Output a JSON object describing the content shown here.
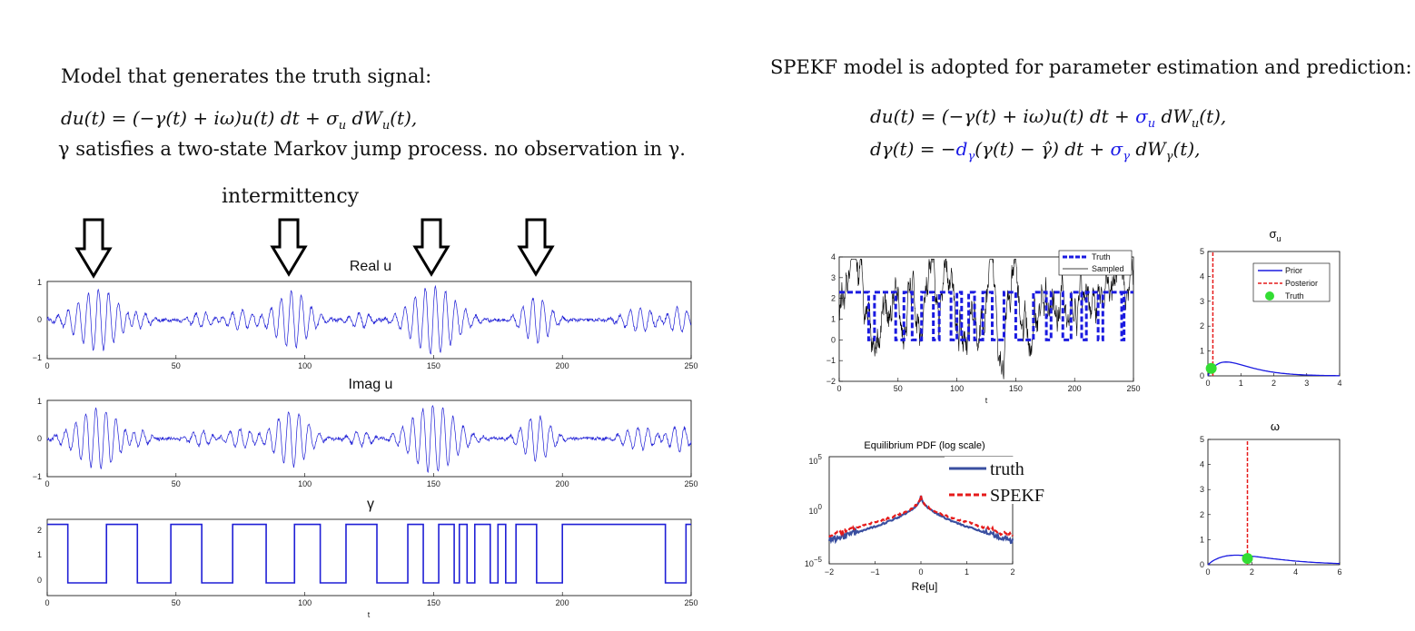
{
  "left": {
    "heading": "Model that generates the truth signal:",
    "equation_parts": {
      "a": "du(t) = (−γ(t) + iω)u(t) dt + σ",
      "sub": "u",
      "b": " dW",
      "sub2": "u",
      "c": "(t),"
    },
    "note": "γ satisfies a two-state Markov jump process.  no observation in γ.",
    "intermittency_label": "intermittency",
    "arrow_icon": "down-arrow-icon",
    "panels": [
      {
        "title": "Real u",
        "yticks": [
          "1",
          "0",
          "−1"
        ],
        "xticks": [
          "0",
          "50",
          "100",
          "150",
          "200",
          "250"
        ],
        "xlabel": ""
      },
      {
        "title": "Imag u",
        "yticks": [
          "1",
          "0",
          "−1"
        ],
        "xticks": [
          "0",
          "50",
          "100",
          "150",
          "200",
          "250"
        ],
        "xlabel": ""
      },
      {
        "title": "γ",
        "yticks": [
          "2",
          "1",
          "0"
        ],
        "xticks": [
          "0",
          "50",
          "100",
          "150",
          "200",
          "250"
        ],
        "xlabel": "t"
      }
    ]
  },
  "right": {
    "heading": "SPEKF model is adopted for parameter estimation and prediction:",
    "eq1_parts": {
      "a": "du(t) = (−γ(t) + iω)u(t) dt + ",
      "s": "σ",
      "sub": "u",
      "b": " dW",
      "sub2": "u",
      "c": "(t),"
    },
    "eq2_parts": {
      "a": "dγ(t) = −",
      "d": "d",
      "dsub": "γ",
      "b": "(γ(t) − ",
      "ghat": "γ̂",
      "c": ") dt + ",
      "s": "σ",
      "ssub": "γ",
      "e": " dW",
      "esub": "γ",
      "f": "(t),"
    },
    "gamma_plot": {
      "yticks": [
        "4",
        "3",
        "2",
        "1",
        "0",
        "−1",
        "−2"
      ],
      "xticks": [
        "0",
        "50",
        "100",
        "150",
        "200",
        "250"
      ],
      "xlabel": "t",
      "legend": [
        "Truth",
        "Sampled"
      ]
    },
    "sigma_plot": {
      "title": "σ",
      "title_sub": "u",
      "yticks": [
        "5",
        "4",
        "3",
        "2",
        "1",
        "0"
      ],
      "xticks": [
        "0",
        "1",
        "2",
        "3",
        "4"
      ],
      "legend": [
        "Prior",
        "Posterior",
        "Truth"
      ]
    },
    "pdf_plot": {
      "title": "Equilibrium PDF (log scale)",
      "yticks": [
        "10",
        "10",
        "10"
      ],
      "yexp": [
        "5",
        "0",
        "−5"
      ],
      "xticks": [
        "−2",
        "−1",
        "0",
        "1",
        "2"
      ],
      "xlabel": "Re[u]",
      "legend": [
        "truth",
        "SPEKF"
      ]
    },
    "omega_plot": {
      "title": "ω",
      "yticks": [
        "5",
        "4",
        "3",
        "2",
        "1",
        "0"
      ],
      "xticks": [
        "0",
        "2",
        "4",
        "6"
      ]
    }
  },
  "colors": {
    "signal": "#1f1fd6",
    "truth_pdf": "#3a4fa0",
    "posterior": "#e61a1a",
    "truth_dot": "#33dd33"
  },
  "chart_data": [
    {
      "type": "line",
      "title": "Real u",
      "xlim": [
        0,
        250
      ],
      "ylim": [
        -1,
        1
      ],
      "note_values": "oscillatory signal with bursts near t≈20, 95, 150, 190"
    },
    {
      "type": "line",
      "title": "Imag u",
      "xlim": [
        0,
        250
      ],
      "ylim": [
        -1,
        1
      ]
    },
    {
      "type": "line",
      "title": "γ",
      "xlim": [
        0,
        250
      ],
      "ylim": [
        -0.5,
        2.5
      ],
      "x": [
        0,
        7,
        8,
        22,
        23,
        35,
        48,
        60,
        72,
        85,
        96,
        106,
        116,
        128,
        140,
        146,
        152,
        158,
        160,
        163,
        166,
        172,
        175,
        178,
        182,
        190,
        200,
        215,
        240,
        248,
        250
      ],
      "values": [
        2.3,
        2.3,
        0,
        0,
        2.3,
        0,
        2.3,
        0,
        2.3,
        0,
        2.3,
        0,
        2.3,
        0,
        2.3,
        0,
        2.3,
        0,
        2.3,
        0,
        2.3,
        0,
        2.3,
        0,
        2.3,
        0,
        2.3,
        2.3,
        0,
        2.3,
        2.3
      ]
    },
    {
      "type": "line",
      "xlim": [
        0,
        250
      ],
      "ylim": [
        -2,
        4
      ],
      "series": [
        {
          "name": "Truth"
        },
        {
          "name": "Sampled"
        }
      ]
    },
    {
      "type": "line",
      "title": "σu",
      "xlim": [
        0,
        4
      ],
      "ylim": [
        0,
        5
      ],
      "series": [
        {
          "name": "Prior"
        },
        {
          "name": "Posterior",
          "x": 0.15
        },
        {
          "name": "Truth",
          "x": 0.1,
          "y": 0.3
        }
      ]
    },
    {
      "type": "line",
      "title": "Equilibrium PDF (log scale)",
      "xlim": [
        -2,
        2
      ],
      "series": [
        {
          "name": "truth"
        },
        {
          "name": "SPEKF"
        }
      ]
    },
    {
      "type": "line",
      "title": "ω",
      "xlim": [
        0,
        6
      ],
      "ylim": [
        0,
        5
      ],
      "series": [
        {
          "name": "Posterior",
          "x": 1.8
        },
        {
          "name": "Truth",
          "x": 1.8,
          "y": 0.25
        }
      ]
    }
  ]
}
